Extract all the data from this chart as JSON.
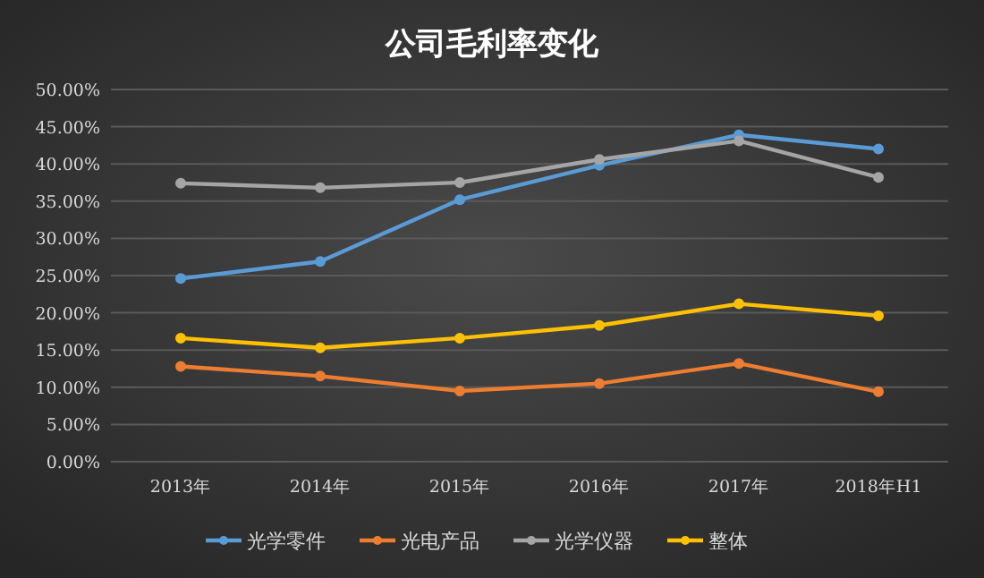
{
  "chart_data": {
    "type": "line",
    "title": "公司毛利率变化",
    "categories": [
      "2013年",
      "2014年",
      "2015年",
      "2016年",
      "2017年",
      "2018年H1"
    ],
    "series": [
      {
        "name": "光学零件",
        "color": "#5b9bd5",
        "values": [
          24.6,
          26.9,
          35.2,
          39.8,
          43.9,
          42.0
        ]
      },
      {
        "name": "光电产品",
        "color": "#ed7d31",
        "values": [
          12.8,
          11.5,
          9.5,
          10.5,
          13.2,
          9.4
        ]
      },
      {
        "name": "光学仪器",
        "color": "#a5a5a5",
        "values": [
          37.4,
          36.8,
          37.5,
          40.6,
          43.1,
          38.2
        ]
      },
      {
        "name": "整体",
        "color": "#ffc000",
        "values": [
          16.6,
          15.3,
          16.6,
          18.3,
          21.2,
          19.6
        ]
      }
    ],
    "ylim": [
      0,
      50
    ],
    "yticks": [
      {
        "value": 0,
        "label": "0.00%"
      },
      {
        "value": 5,
        "label": "5.00%"
      },
      {
        "value": 10,
        "label": "10.00%"
      },
      {
        "value": 15,
        "label": "15.00%"
      },
      {
        "value": 20,
        "label": "20.00%"
      },
      {
        "value": 25,
        "label": "25.00%"
      },
      {
        "value": 30,
        "label": "30.00%"
      },
      {
        "value": 35,
        "label": "35.00%"
      },
      {
        "value": 40,
        "label": "40.00%"
      },
      {
        "value": 45,
        "label": "45.00%"
      },
      {
        "value": 50,
        "label": "50.00%"
      }
    ],
    "grid": "y",
    "legend": "bottom",
    "marker": "circle",
    "line_style": "solid"
  }
}
